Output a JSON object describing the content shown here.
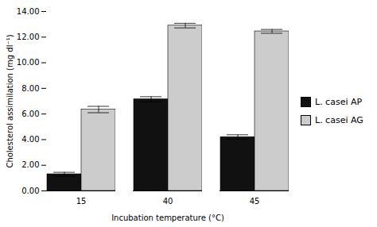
{
  "chart_data": {
    "type": "bar",
    "xlabel": "Incubation temperature (°C)",
    "ylabel": "Cholesterol assimilation (mg dl⁻¹)",
    "categories": [
      "15",
      "40",
      "45"
    ],
    "series": [
      {
        "name": "L. casei AP",
        "color": "#111111",
        "values": [
          1.3,
          7.15,
          4.2
        ],
        "errors": [
          0.15,
          0.2,
          0.18
        ]
      },
      {
        "name": "L. casei AG",
        "color": "#cccccc",
        "values": [
          6.35,
          12.9,
          12.45
        ],
        "errors": [
          0.25,
          0.18,
          0.15
        ]
      }
    ],
    "ylim": [
      0,
      14.0
    ],
    "yticks": [
      {
        "value": 0.0,
        "label": "0.00"
      },
      {
        "value": 2.0,
        "label": "2.00"
      },
      {
        "value": 4.0,
        "label": "4.00"
      },
      {
        "value": 6.0,
        "label": "6.00"
      },
      {
        "value": 8.0,
        "label": "8.00"
      },
      {
        "value": 10.0,
        "label": "10.00"
      },
      {
        "value": 12.0,
        "label": "12.00"
      },
      {
        "value": 14.0,
        "label": "14.00"
      }
    ],
    "grid": false,
    "legend": "right"
  }
}
